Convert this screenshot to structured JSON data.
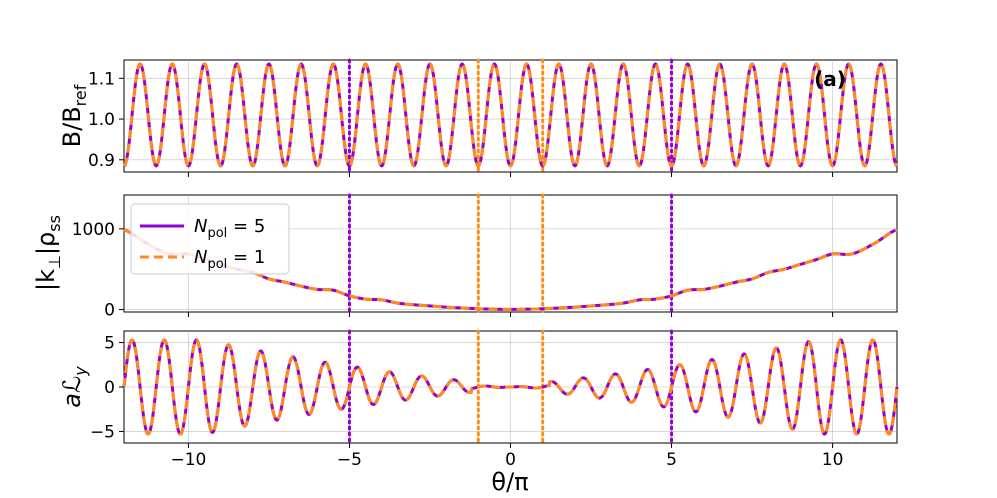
{
  "chart_data": {
    "type": "line",
    "x_label": "θ/π",
    "x_range": [
      -12,
      12
    ],
    "x_ticks": [
      -10,
      -5,
      0,
      5,
      10
    ],
    "x_tick_labels": [
      "−10",
      "−5",
      "0",
      "5",
      "10"
    ],
    "grid": true,
    "series_colors": {
      "npol5": "#9400d3",
      "npol1": "#ff8c1a"
    },
    "vlines": [
      {
        "x": -5,
        "series": "npol5"
      },
      {
        "x": 5,
        "series": "npol5"
      },
      {
        "x": -1,
        "series": "npol1"
      },
      {
        "x": 1,
        "series": "npol1"
      }
    ],
    "panels": [
      {
        "id": "B",
        "ylabel": "B/B_ref",
        "ylabel_main": "B/B",
        "ylabel_sub": "ref",
        "tag": "(a)",
        "ylim": [
          0.87,
          1.145
        ],
        "yticks": [
          0.9,
          1.0,
          1.1
        ],
        "ytick_labels": [
          "0.9",
          "1.0",
          "1.1"
        ],
        "model": "B(θ) = 1.01 − 0.125·cos(2π·θ)",
        "peaks_at_half_integers": true,
        "max": 1.135,
        "min": 0.885
      },
      {
        "id": "kperp",
        "ylabel": "|k⊥|ρss",
        "ylabel_parts": [
          "|k",
          "⊥",
          "|ρ",
          "ss"
        ],
        "ylim": [
          -30,
          1420
        ],
        "yticks": [
          0,
          1000
        ],
        "ytick_labels": [
          "0",
          "1000"
        ],
        "knots": {
          "x": [
            -12,
            -11.3,
            -10.6,
            -10,
            -9.5,
            -9,
            -8.5,
            -8,
            -7.5,
            -7,
            -6.5,
            -6,
            -5.5,
            -5,
            -4.5,
            -4,
            -3.5,
            -3,
            -2.5,
            -2,
            -1.5,
            -1,
            -0.5,
            0,
            0.5,
            1,
            1.5,
            2,
            2.5,
            3,
            3.5,
            4,
            4.5,
            5,
            5.5,
            6,
            6.5,
            7,
            7.5,
            8,
            8.5,
            9,
            9.5,
            10,
            10.6,
            11.3,
            12
          ],
          "y": [
            990,
            820,
            690,
            690,
            620,
            560,
            500,
            460,
            380,
            340,
            290,
            250,
            240,
            170,
            130,
            120,
            80,
            60,
            45,
            30,
            20,
            10,
            5,
            2,
            5,
            10,
            20,
            30,
            45,
            60,
            80,
            120,
            130,
            170,
            240,
            250,
            290,
            340,
            380,
            460,
            500,
            560,
            620,
            690,
            690,
            820,
            990
          ]
        }
      },
      {
        "id": "Ly",
        "ylabel": "aℒy",
        "ylabel_parts": [
          "a",
          "ℒ",
          "y"
        ],
        "ylim": [
          -6.3,
          6.3
        ],
        "yticks": [
          -5,
          0,
          5
        ],
        "ytick_labels": [
          "−5",
          "0",
          "5"
        ],
        "model": "L(θ) = A(|θ|)·sin(2π·θ), envelope A grows from 0 at θ=0 to ~5.2 at |θ|=12"
      }
    ],
    "legend": {
      "placement": "upper-left of middle panel",
      "entries": [
        {
          "label": "N_pol = 5",
          "sym": "N",
          "sub": "pol",
          "rest": " = 5",
          "color": "#9400d3",
          "style": "solid"
        },
        {
          "label": "N_pol = 1",
          "sym": "N",
          "sub": "pol",
          "rest": " = 1",
          "color": "#ff8c1a",
          "style": "dashed"
        }
      ]
    }
  }
}
